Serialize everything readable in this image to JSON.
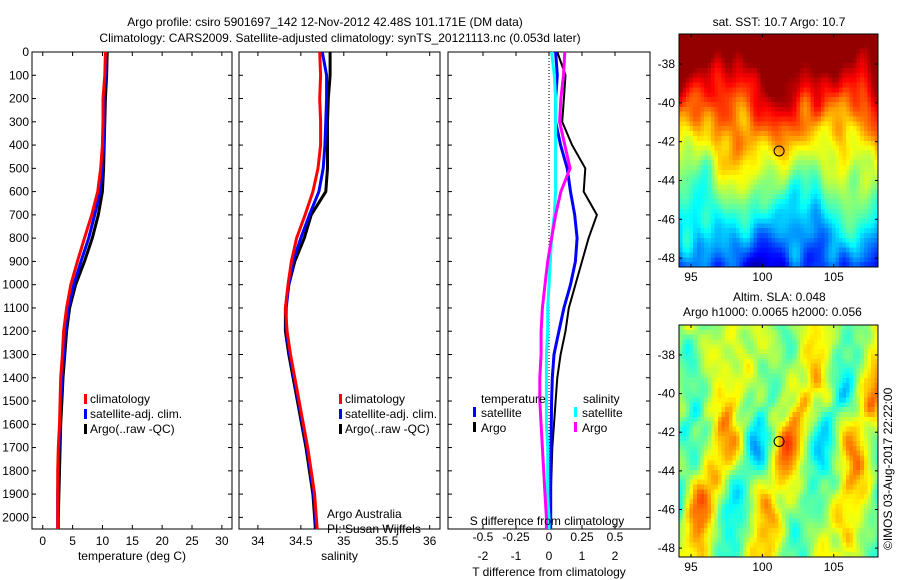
{
  "title": {
    "line1": "Argo profile: csiro 5901697_142 12-Nov-2012 42.48S 101.171E (DM data)",
    "line2": "Climatology: CARS2009. Satellite-adjusted climatology: synTS_20121113.nc (0.053d later)"
  },
  "chart_data": [
    {
      "type": "line",
      "xlabel": "temperature (deg C)",
      "ylabel": "",
      "xlim": [
        -1.8,
        31.7
      ],
      "ylim": [
        2050,
        0
      ],
      "xticks": [
        "0",
        "5",
        "10",
        "15",
        "20",
        "25",
        "30"
      ],
      "yticks": [
        "0",
        "100",
        "200",
        "300",
        "400",
        "500",
        "600",
        "700",
        "800",
        "900",
        "1000",
        "1100",
        "1200",
        "1300",
        "1400",
        "1500",
        "1600",
        "1700",
        "1800",
        "1900",
        "2000"
      ],
      "depth": [
        0,
        100,
        200,
        300,
        400,
        500,
        600,
        700,
        800,
        900,
        1000,
        1100,
        1200,
        1300,
        1400,
        1500,
        1600,
        1700,
        1800,
        1900,
        2000,
        2050
      ],
      "series": [
        {
          "name": "Argo(..raw -QC)",
          "color": "#000000",
          "values": [
            10.8,
            10.7,
            10.5,
            10.4,
            10.3,
            10.2,
            10.0,
            9.3,
            8.3,
            7.0,
            5.5,
            4.5,
            4.0,
            3.7,
            3.4,
            3.2,
            3.0,
            2.9,
            2.8,
            2.7,
            2.6,
            2.6
          ]
        },
        {
          "name": "satellite-adj. clim.",
          "color": "#0000ff",
          "values": [
            10.7,
            10.5,
            10.3,
            10.3,
            10.2,
            10.0,
            9.6,
            8.7,
            7.7,
            6.4,
            5.2,
            4.3,
            3.8,
            3.5,
            3.2,
            3.0,
            2.9,
            2.7,
            2.6,
            2.5,
            2.5,
            2.5
          ]
        },
        {
          "name": "climatology",
          "color": "#ff0000",
          "values": [
            10.5,
            10.4,
            10.1,
            10.1,
            10.0,
            9.7,
            9.2,
            8.2,
            7.0,
            5.8,
            4.7,
            4.0,
            3.5,
            3.3,
            3.0,
            2.9,
            2.8,
            2.6,
            2.5,
            2.5,
            2.5,
            2.5
          ]
        }
      ],
      "legend": [
        "climatology",
        "satellite-adj. clim.",
        "Argo(..raw -QC)"
      ],
      "legend_colors": [
        "#ff0000",
        "#0000ff",
        "#000000"
      ]
    },
    {
      "type": "line",
      "xlabel": "salinity",
      "xlim": [
        33.78,
        36.12
      ],
      "ylim": [
        2050,
        0
      ],
      "xticks": [
        "34",
        "34.5",
        "35",
        "35.5",
        "36"
      ],
      "depth": [
        0,
        100,
        200,
        300,
        400,
        500,
        600,
        700,
        800,
        900,
        1000,
        1100,
        1200,
        1300,
        1400,
        1500,
        1600,
        1700,
        1800,
        1900,
        2000,
        2050
      ],
      "series": [
        {
          "name": "Argo(..raw -QC)",
          "color": "#000000",
          "values": [
            34.84,
            34.84,
            34.82,
            34.81,
            34.81,
            34.81,
            34.79,
            34.62,
            34.54,
            34.43,
            34.36,
            34.32,
            34.32,
            34.36,
            34.41,
            34.46,
            34.51,
            34.56,
            34.6,
            34.64,
            34.66,
            34.67
          ]
        },
        {
          "name": "satellite-adj. clim.",
          "color": "#0000ff",
          "values": [
            34.75,
            34.8,
            34.8,
            34.79,
            34.78,
            34.76,
            34.71,
            34.6,
            34.5,
            34.41,
            34.36,
            34.33,
            34.33,
            34.37,
            34.42,
            34.47,
            34.52,
            34.57,
            34.61,
            34.65,
            34.67,
            34.68
          ]
        },
        {
          "name": "climatology",
          "color": "#ff0000",
          "values": [
            34.72,
            34.73,
            34.72,
            34.73,
            34.73,
            34.7,
            34.64,
            34.55,
            34.45,
            34.39,
            34.35,
            34.32,
            34.34,
            34.38,
            34.43,
            34.48,
            34.53,
            34.58,
            34.62,
            34.66,
            34.68,
            34.69
          ]
        }
      ],
      "legend": [
        "climatology",
        "satellite-adj. clim.",
        "Argo(..raw -QC)"
      ],
      "legend_colors": [
        "#ff0000",
        "#0000ff",
        "#000000"
      ]
    },
    {
      "type": "line",
      "xlabel": "T difference from climatology",
      "xlabel2": "S difference from climatology",
      "xlim": [
        -3.06,
        3.06
      ],
      "xlim2": [
        -0.765,
        0.765
      ],
      "ylim": [
        2050,
        0
      ],
      "xticks": [
        "-2",
        "-1",
        "0",
        "1",
        "2"
      ],
      "xticks2": [
        "-0.5",
        "-0.25",
        "0",
        "0.25",
        "0.5"
      ],
      "depth": [
        0,
        100,
        200,
        300,
        400,
        500,
        600,
        700,
        800,
        900,
        1000,
        1100,
        1200,
        1300,
        1400,
        1500,
        1600,
        1700,
        1800,
        1900,
        2000,
        2050
      ],
      "series": [
        {
          "name": "temperature Argo",
          "axis": "T",
          "color": "#000000",
          "values": [
            0.25,
            0.5,
            0.45,
            0.4,
            0.7,
            1.1,
            1.05,
            1.45,
            1.2,
            1.0,
            0.8,
            0.6,
            0.5,
            0.35,
            0.25,
            0.2,
            0.15,
            0.1,
            0.08,
            0.05,
            0.05,
            0.05
          ]
        },
        {
          "name": "temperature satellite",
          "axis": "T",
          "color": "#0000ff",
          "values": [
            0.2,
            0.25,
            0.2,
            0.2,
            0.35,
            0.55,
            0.65,
            0.78,
            0.85,
            0.8,
            0.65,
            0.45,
            0.3,
            0.15,
            0.1,
            0.08,
            0.07,
            0.06,
            0.05,
            0.05,
            0.05,
            0.05
          ]
        },
        {
          "name": "salinity satellite",
          "axis": "S",
          "color": "#00ffff",
          "values": [
            0.02,
            0.04,
            0.05,
            0.05,
            0.05,
            0.05,
            0.05,
            0.04,
            0.02,
            0.01,
            0.0,
            -0.01,
            -0.01,
            -0.02,
            -0.02,
            -0.02,
            -0.02,
            -0.01,
            -0.01,
            -0.01,
            0.0,
            0.0
          ]
        },
        {
          "name": "salinity Argo",
          "axis": "S",
          "color": "#ff00ff",
          "values": [
            0.12,
            0.11,
            0.09,
            0.08,
            0.12,
            0.16,
            0.09,
            0.05,
            0.02,
            -0.01,
            -0.03,
            -0.05,
            -0.06,
            -0.06,
            -0.07,
            -0.07,
            -0.06,
            -0.05,
            -0.04,
            -0.03,
            -0.02,
            -0.02
          ]
        }
      ],
      "legend": {
        "temperature_title": "temperature",
        "salinity_title": "salinity",
        "items": [
          {
            "label": "satellite",
            "color": "#0000ff"
          },
          {
            "label": "Argo",
            "color": "#000000"
          },
          {
            "label": "satellite",
            "color": "#00ffff"
          },
          {
            "label": "Argo",
            "color": "#ff00ff"
          }
        ]
      }
    },
    {
      "type": "heatmap",
      "title": "sat. SST: 10.7 Argo: 10.7",
      "xlim": [
        94.16,
        108.1
      ],
      "ylim": [
        -48.46,
        -36.45
      ],
      "xticks": [
        "95",
        "100",
        "105"
      ],
      "yticks": [
        "-38",
        "-40",
        "-42",
        "-44",
        "-46",
        "-48"
      ],
      "argo_position": [
        101.171,
        -42.48
      ]
    },
    {
      "type": "heatmap",
      "title_lines": [
        "Altim. SLA: 0.048",
        "Argo h1000: 0.0065 h2000: 0.056"
      ],
      "xlim": [
        94.16,
        108.1
      ],
      "ylim": [
        -48.46,
        -36.45
      ],
      "xticks": [
        "95",
        "100",
        "105"
      ],
      "yticks": [
        "-38",
        "-40",
        "-42",
        "-44",
        "-46",
        "-48"
      ],
      "argo_position": [
        101.171,
        -42.48
      ]
    }
  ],
  "credits": {
    "org": "Argo Australia",
    "pi": "PI: Susan Wijffels",
    "stamp": "©IMOS 03-Aug-2017 22:22:00"
  }
}
